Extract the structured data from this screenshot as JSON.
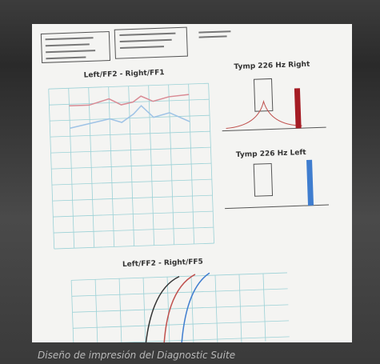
{
  "photo": {
    "headings": [
      "Left/FF2 - Right/FF1",
      "Tymp 226 Hz Right",
      "Tymp 226 Hz Left",
      "Left/FF2 - Right/FF5"
    ]
  },
  "caption": "Diseño de impresión del Diagnostic Suite"
}
